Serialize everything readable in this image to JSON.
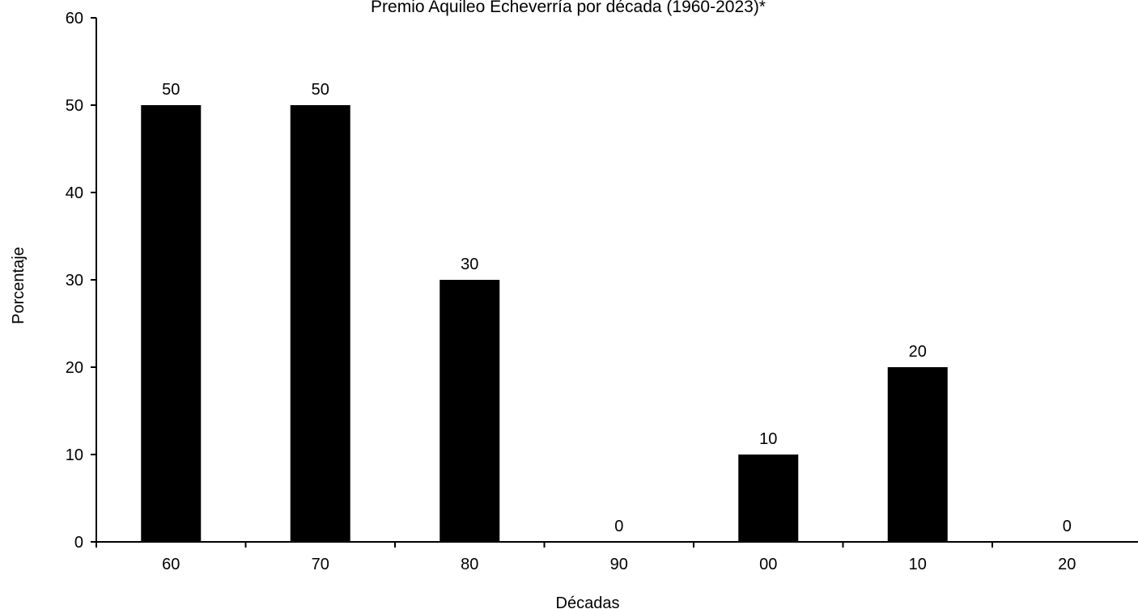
{
  "chart_data": {
    "type": "bar",
    "title": "Premio Aquileo Echeverría por década (1960-2023)*",
    "xlabel": "Décadas",
    "ylabel": "Porcentaje",
    "categories": [
      "60",
      "70",
      "80",
      "90",
      "00",
      "10",
      "20"
    ],
    "values": [
      50,
      50,
      30,
      0,
      10,
      20,
      0
    ],
    "ylim": [
      0,
      60
    ],
    "yticks": [
      "0",
      "10",
      "20",
      "30",
      "40",
      "50",
      "60"
    ],
    "data_labels": [
      "50",
      "50",
      "30",
      "0",
      "10",
      "20",
      "0"
    ],
    "grid": false,
    "bar_color": "#000000"
  }
}
